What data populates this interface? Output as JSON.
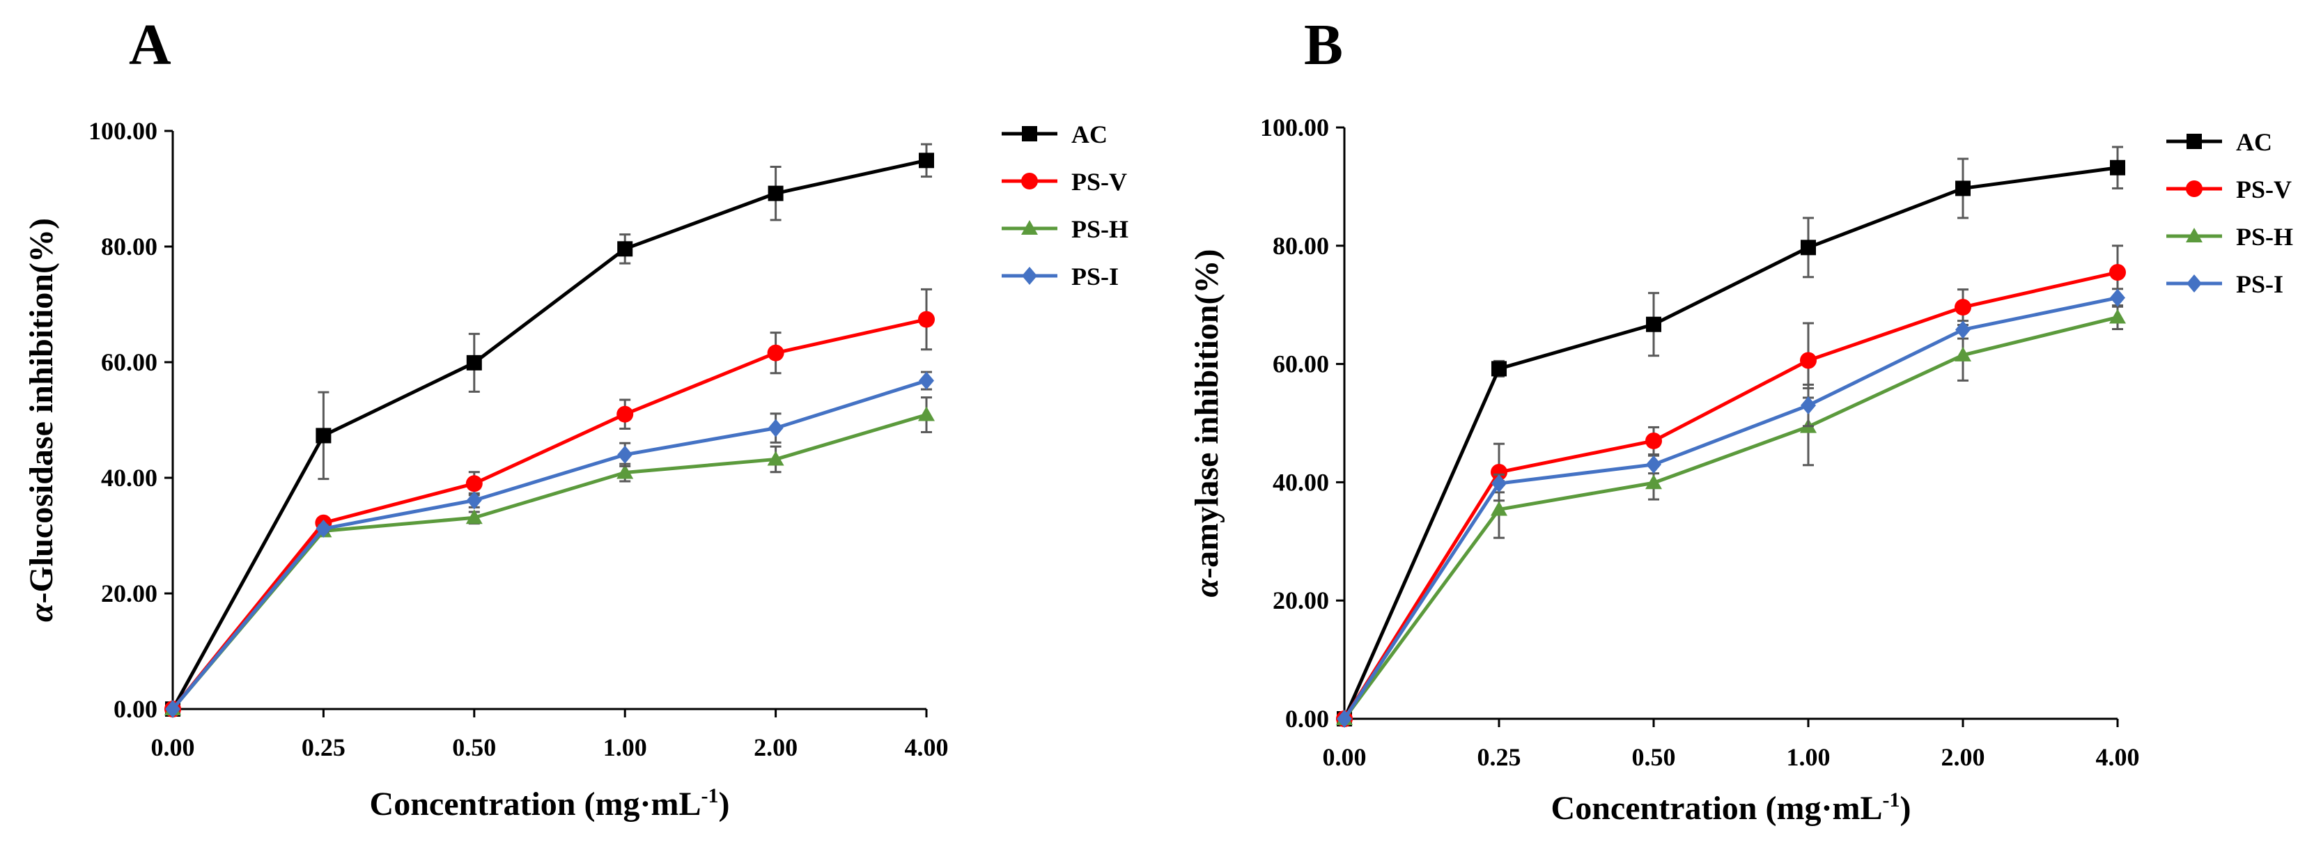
{
  "colors": {
    "AC": "#000000",
    "PS-V": "#ff0000",
    "PS-H": "#5b9a3c",
    "PS-I": "#4472c4",
    "error_bar": "#595959"
  },
  "markers": {
    "AC": "square",
    "PS-V": "circle",
    "PS-H": "triangle",
    "PS-I": "diamond"
  },
  "chart_data": [
    {
      "panel": "A",
      "type": "line",
      "title": "",
      "xlabel_main": "Concentration (mg·mL",
      "xlabel_sup": "-1",
      "xlabel_end": ")",
      "ylabel_italic": "α",
      "ylabel_rest": "-Glucosidase inhibition(%)",
      "categories": [
        "0.00",
        "0.25",
        "0.50",
        "1.00",
        "2.00",
        "4.00"
      ],
      "yticks": [
        "0.00",
        "20.00",
        "40.00",
        "60.00",
        "80.00",
        "100.00"
      ],
      "ylim": [
        0,
        100
      ],
      "legend_position": "top-right",
      "series": [
        {
          "name": "AC",
          "values": [
            0,
            47.3,
            59.9,
            79.6,
            89.2,
            94.9
          ],
          "errors": [
            0,
            7.5,
            5,
            2.5,
            4.6,
            2.8
          ]
        },
        {
          "name": "PS-V",
          "values": [
            0,
            32.2,
            39.0,
            51.0,
            61.6,
            67.4
          ],
          "errors": [
            0,
            0.8,
            2,
            2.5,
            3.5,
            5.2
          ]
        },
        {
          "name": "PS-H",
          "values": [
            0,
            30.8,
            33.1,
            40.9,
            43.2,
            50.9
          ],
          "errors": [
            0,
            0.6,
            1,
            1.5,
            2.2,
            3
          ]
        },
        {
          "name": "PS-I",
          "values": [
            0,
            31.2,
            36.1,
            44.0,
            48.6,
            56.8
          ],
          "errors": [
            0,
            0.6,
            1.2,
            2,
            2.5,
            1.5
          ]
        }
      ]
    },
    {
      "panel": "B",
      "type": "line",
      "title": "",
      "xlabel_main": "Concentration (mg·mL",
      "xlabel_sup": "-1",
      "xlabel_end": ")",
      "ylabel_italic": "α",
      "ylabel_rest": "-amylase inhibition(%)",
      "categories": [
        "0.00",
        "0.25",
        "0.50",
        "1.00",
        "2.00",
        "4.00"
      ],
      "yticks": [
        "0.00",
        "20.00",
        "40.00",
        "60.00",
        "80.00",
        "100.00"
      ],
      "ylim": [
        0,
        100
      ],
      "legend_position": "top-right",
      "series": [
        {
          "name": "AC",
          "values": [
            0,
            59.2,
            66.7,
            79.7,
            89.7,
            93.2
          ],
          "errors": [
            0,
            1.3,
            5.3,
            5,
            5,
            3.5
          ]
        },
        {
          "name": "PS-V",
          "values": [
            0,
            41.7,
            47.0,
            60.6,
            69.6,
            75.5
          ],
          "errors": [
            0,
            4.8,
            2.3,
            6.3,
            3,
            4.5
          ]
        },
        {
          "name": "PS-H",
          "values": [
            0,
            35.4,
            39.9,
            49.4,
            61.5,
            67.9
          ],
          "errors": [
            0,
            4.8,
            2.8,
            6.5,
            4.3,
            2
          ]
        },
        {
          "name": "PS-I",
          "values": [
            0,
            39.8,
            43.0,
            53.0,
            65.8,
            71.2
          ],
          "errors": [
            0,
            1.5,
            1.5,
            3.5,
            1.5,
            1.5
          ]
        }
      ]
    }
  ]
}
